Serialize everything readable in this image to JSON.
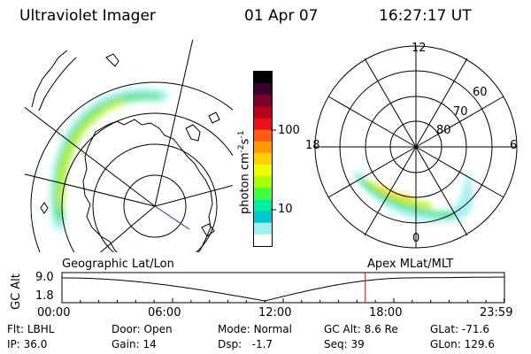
{
  "header": {
    "instrument": "Ultraviolet Imager",
    "date": "01 Apr 07",
    "time": "16:27:17 UT"
  },
  "colorbar": {
    "unit_label": "photon cm",
    "unit_exp1": "-2",
    "unit_mid": "s",
    "unit_exp2": "-1",
    "tick_100": "100",
    "tick_10": "10",
    "colors": [
      "#000000",
      "#3a0030",
      "#7a0028",
      "#b8001a",
      "#e8101a",
      "#ff5a10",
      "#ff9a00",
      "#ffd000",
      "#f0ff00",
      "#a8ff00",
      "#40ff40",
      "#00f0a0",
      "#00c8d0",
      "#a0f0f0",
      "#ffffff"
    ]
  },
  "polar": {
    "lat_labels": [
      "80",
      "70",
      "60"
    ],
    "mlt_labels": [
      "12",
      "18",
      "6",
      "0"
    ]
  },
  "map_labels": {
    "left": "Geographic Lat/Lon",
    "right": "Apex MLat/MLT"
  },
  "altitude_plot": {
    "ylabel": "GC Alt",
    "ymax": "9.0",
    "ymin": "1.8",
    "time_ticks": [
      "00:00",
      "06:00",
      "12:00",
      "18:00",
      "23:59"
    ],
    "current_time_marker_hours": 16.45,
    "marker_color": "#dd0000"
  },
  "info": {
    "flt_label": "Flt:",
    "flt_value": "LBHL",
    "ip_label": "IP:",
    "ip_value": "36.0",
    "door_label": "Door:",
    "door_value": "Open",
    "gain_label": "Gain:",
    "gain_value": "14",
    "mode_label": "Mode:",
    "mode_value": "Normal",
    "dsp_label": "Dsp:",
    "dsp_value": "-1.7",
    "gcalt_label": "GC Alt:",
    "gcalt_value": "8.6 Re",
    "seq_label": "Seq:",
    "seq_value": "39",
    "glat_label": "GLat:",
    "glat_value": "-71.6",
    "glon_label": "GLon:",
    "glon_value": "129.6"
  }
}
